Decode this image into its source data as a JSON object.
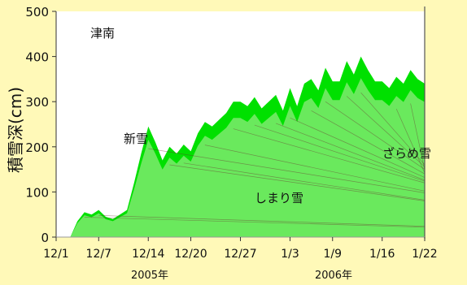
{
  "chart_data": {
    "type": "area",
    "title": "津南",
    "ylabel": "積雪深(cm)",
    "ylim": [
      0,
      500
    ],
    "yticks": [
      0,
      100,
      200,
      300,
      400,
      500
    ],
    "xticks": [
      "12/1",
      "12/7",
      "12/14",
      "12/20",
      "12/27",
      "1/3",
      "1/9",
      "1/16",
      "1/22"
    ],
    "years": [
      "2005年",
      "2006年"
    ],
    "annotations": [
      "新雪",
      "しまり雪",
      "ざらめ雪"
    ],
    "grid": false,
    "colors": {
      "new_snow_bright": "#00e000",
      "new_snow_light": "#7dea6d",
      "new_snow_mid": "#2eb82e",
      "compacted_dark": "#2c5a1e",
      "compacted_gray": "#5b8a55",
      "granular_red": "#e8131d",
      "granular_pink": "#f7b9bd",
      "granular_light": "#f08f98"
    },
    "series": [
      {
        "name": "積雪深",
        "x_day": [
          1,
          2,
          3,
          4,
          5,
          6,
          7,
          8,
          9,
          10,
          11,
          12,
          13,
          14,
          15,
          16,
          17,
          18,
          19,
          20,
          21,
          22,
          23,
          24,
          25,
          26,
          27,
          28,
          29,
          30,
          31,
          32,
          33,
          34,
          35,
          36,
          37,
          38,
          39,
          40,
          41,
          42,
          43,
          44,
          45,
          46,
          47,
          48,
          49,
          50,
          51,
          52,
          53
        ],
        "dates": [
          "12/1",
          "12/2",
          "12/3",
          "12/4",
          "12/5",
          "12/6",
          "12/7",
          "12/8",
          "12/9",
          "12/10",
          "12/11",
          "12/12",
          "12/13",
          "12/14",
          "12/15",
          "12/16",
          "12/17",
          "12/18",
          "12/19",
          "12/20",
          "12/21",
          "12/22",
          "12/23",
          "12/24",
          "12/25",
          "12/26",
          "12/27",
          "12/28",
          "12/29",
          "12/30",
          "12/31",
          "1/1",
          "1/2",
          "1/3",
          "1/4",
          "1/5",
          "1/6",
          "1/7",
          "1/8",
          "1/9",
          "1/10",
          "1/11",
          "1/12",
          "1/13",
          "1/14",
          "1/15",
          "1/16",
          "1/17",
          "1/18",
          "1/19",
          "1/20",
          "1/21",
          "1/22"
        ],
        "values": [
          0,
          0,
          0,
          35,
          55,
          50,
          60,
          45,
          40,
          50,
          60,
          120,
          185,
          245,
          210,
          170,
          200,
          185,
          205,
          190,
          230,
          255,
          245,
          260,
          275,
          300,
          300,
          290,
          310,
          285,
          300,
          315,
          280,
          330,
          290,
          340,
          350,
          325,
          375,
          345,
          345,
          390,
          360,
          400,
          370,
          345,
          345,
          330,
          355,
          340,
          370,
          350,
          340
        ]
      }
    ]
  }
}
